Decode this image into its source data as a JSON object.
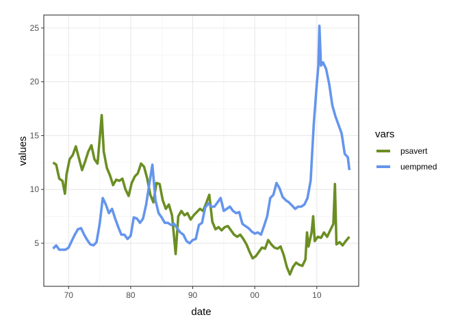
{
  "chart_data": {
    "type": "line",
    "xlabel": "date",
    "ylabel": "values",
    "x_tick_labels": [
      "70",
      "80",
      "90",
      "00",
      "10"
    ],
    "x_ticks": [
      "1970-01-01",
      "1980-01-01",
      "1990-01-01",
      "2000-01-01",
      "2010-01-01"
    ],
    "y_ticks": [
      5,
      10,
      15,
      20,
      25
    ],
    "xlim": [
      "1966-01-01",
      "2016-10-01"
    ],
    "ylim": [
      1.0,
      26.2
    ],
    "grid": true,
    "legend": {
      "title": "vars",
      "position": "right"
    },
    "series": [
      {
        "name": "psavert",
        "color": "#6b8e23",
        "points": [
          [
            "1967-07-01",
            12.5
          ],
          [
            "1968-01-01",
            12.3
          ],
          [
            "1968-07-01",
            11.0
          ],
          [
            "1969-01-01",
            10.8
          ],
          [
            "1969-06-01",
            9.6
          ],
          [
            "1969-09-01",
            11.4
          ],
          [
            "1970-03-01",
            12.8
          ],
          [
            "1970-09-01",
            13.2
          ],
          [
            "1971-03-01",
            14.0
          ],
          [
            "1971-09-01",
            12.9
          ],
          [
            "1972-03-01",
            11.8
          ],
          [
            "1972-09-01",
            12.6
          ],
          [
            "1973-03-01",
            13.5
          ],
          [
            "1973-09-01",
            14.1
          ],
          [
            "1974-03-01",
            12.8
          ],
          [
            "1974-09-01",
            12.4
          ],
          [
            "1975-05-01",
            16.9
          ],
          [
            "1975-09-01",
            13.5
          ],
          [
            "1976-03-01",
            12.0
          ],
          [
            "1976-09-01",
            11.3
          ],
          [
            "1977-03-01",
            10.4
          ],
          [
            "1977-09-01",
            10.9
          ],
          [
            "1978-03-01",
            10.8
          ],
          [
            "1978-09-01",
            11.0
          ],
          [
            "1979-03-01",
            10.0
          ],
          [
            "1979-09-01",
            9.4
          ],
          [
            "1980-03-01",
            10.6
          ],
          [
            "1980-09-01",
            11.2
          ],
          [
            "1981-03-01",
            11.5
          ],
          [
            "1981-09-01",
            12.4
          ],
          [
            "1982-03-01",
            12.1
          ],
          [
            "1982-09-01",
            11.0
          ],
          [
            "1983-03-01",
            9.5
          ],
          [
            "1983-09-01",
            8.8
          ],
          [
            "1984-03-01",
            10.6
          ],
          [
            "1984-09-01",
            10.5
          ],
          [
            "1985-03-01",
            9.0
          ],
          [
            "1985-09-01",
            8.2
          ],
          [
            "1986-03-01",
            8.6
          ],
          [
            "1986-09-01",
            7.6
          ],
          [
            "1987-04-01",
            4.0
          ],
          [
            "1987-09-01",
            7.5
          ],
          [
            "1988-03-01",
            8.0
          ],
          [
            "1988-09-01",
            7.6
          ],
          [
            "1989-03-01",
            7.8
          ],
          [
            "1989-09-01",
            7.2
          ],
          [
            "1990-03-01",
            7.6
          ],
          [
            "1990-09-01",
            7.9
          ],
          [
            "1991-03-01",
            8.2
          ],
          [
            "1991-09-01",
            8.0
          ],
          [
            "1992-03-01",
            8.7
          ],
          [
            "1992-09-01",
            9.5
          ],
          [
            "1993-03-01",
            7.0
          ],
          [
            "1993-09-01",
            6.3
          ],
          [
            "1994-03-01",
            6.5
          ],
          [
            "1994-09-01",
            6.2
          ],
          [
            "1995-03-01",
            6.5
          ],
          [
            "1995-09-01",
            6.6
          ],
          [
            "1996-03-01",
            6.2
          ],
          [
            "1996-09-01",
            5.8
          ],
          [
            "1997-03-01",
            5.6
          ],
          [
            "1997-09-01",
            5.8
          ],
          [
            "1998-03-01",
            5.4
          ],
          [
            "1998-09-01",
            4.9
          ],
          [
            "1999-03-01",
            4.2
          ],
          [
            "1999-09-01",
            3.6
          ],
          [
            "2000-03-01",
            3.8
          ],
          [
            "2000-09-01",
            4.2
          ],
          [
            "2001-03-01",
            4.6
          ],
          [
            "2001-09-01",
            4.5
          ],
          [
            "2002-03-01",
            5.3
          ],
          [
            "2002-09-01",
            4.9
          ],
          [
            "2003-03-01",
            4.6
          ],
          [
            "2003-09-01",
            4.5
          ],
          [
            "2004-03-01",
            4.7
          ],
          [
            "2004-09-01",
            3.9
          ],
          [
            "2005-03-01",
            2.8
          ],
          [
            "2005-09-01",
            2.1
          ],
          [
            "2006-03-01",
            2.8
          ],
          [
            "2006-09-01",
            3.2
          ],
          [
            "2007-03-01",
            3.0
          ],
          [
            "2007-09-01",
            2.9
          ],
          [
            "2008-03-01",
            3.5
          ],
          [
            "2008-06-01",
            6.0
          ],
          [
            "2008-09-01",
            4.7
          ],
          [
            "2009-03-01",
            6.0
          ],
          [
            "2009-06-01",
            7.5
          ],
          [
            "2009-09-01",
            5.2
          ],
          [
            "2010-03-01",
            5.6
          ],
          [
            "2010-09-01",
            5.5
          ],
          [
            "2011-03-01",
            6.0
          ],
          [
            "2011-09-01",
            5.6
          ],
          [
            "2012-03-01",
            6.2
          ],
          [
            "2012-09-01",
            6.8
          ],
          [
            "2012-12-01",
            10.5
          ],
          [
            "2013-03-01",
            4.9
          ],
          [
            "2013-09-01",
            5.1
          ],
          [
            "2014-03-01",
            4.8
          ],
          [
            "2014-09-01",
            5.2
          ],
          [
            "2015-04-01",
            5.6
          ]
        ]
      },
      {
        "name": "uempmed",
        "color": "#6495ed",
        "points": [
          [
            "1967-07-01",
            4.5
          ],
          [
            "1968-01-01",
            4.8
          ],
          [
            "1968-07-01",
            4.4
          ],
          [
            "1969-01-01",
            4.4
          ],
          [
            "1969-07-01",
            4.4
          ],
          [
            "1970-01-01",
            4.6
          ],
          [
            "1970-07-01",
            5.2
          ],
          [
            "1971-01-01",
            5.8
          ],
          [
            "1971-07-01",
            6.3
          ],
          [
            "1972-01-01",
            6.4
          ],
          [
            "1972-07-01",
            5.8
          ],
          [
            "1973-01-01",
            5.3
          ],
          [
            "1973-07-01",
            4.9
          ],
          [
            "1974-01-01",
            4.8
          ],
          [
            "1974-07-01",
            5.1
          ],
          [
            "1975-01-01",
            6.8
          ],
          [
            "1975-07-01",
            9.2
          ],
          [
            "1976-01-01",
            8.6
          ],
          [
            "1976-07-01",
            7.8
          ],
          [
            "1977-01-01",
            8.2
          ],
          [
            "1977-07-01",
            7.3
          ],
          [
            "1978-01-01",
            6.5
          ],
          [
            "1978-07-01",
            5.8
          ],
          [
            "1979-01-01",
            5.8
          ],
          [
            "1979-07-01",
            5.4
          ],
          [
            "1980-01-01",
            5.7
          ],
          [
            "1980-07-01",
            7.4
          ],
          [
            "1981-01-01",
            7.3
          ],
          [
            "1981-07-01",
            6.9
          ],
          [
            "1982-01-01",
            7.3
          ],
          [
            "1982-07-01",
            8.6
          ],
          [
            "1983-01-01",
            10.5
          ],
          [
            "1983-07-01",
            12.3
          ],
          [
            "1984-01-01",
            9.0
          ],
          [
            "1984-07-01",
            7.8
          ],
          [
            "1985-01-01",
            7.4
          ],
          [
            "1985-07-01",
            6.9
          ],
          [
            "1986-01-01",
            6.9
          ],
          [
            "1986-07-01",
            6.7
          ],
          [
            "1987-01-01",
            6.8
          ],
          [
            "1987-07-01",
            6.4
          ],
          [
            "1988-01-01",
            6.0
          ],
          [
            "1988-07-01",
            5.8
          ],
          [
            "1989-01-01",
            5.2
          ],
          [
            "1989-07-01",
            5.0
          ],
          [
            "1990-01-01",
            5.3
          ],
          [
            "1990-07-01",
            5.4
          ],
          [
            "1991-01-01",
            6.7
          ],
          [
            "1991-07-01",
            6.9
          ],
          [
            "1992-01-01",
            8.3
          ],
          [
            "1992-07-01",
            8.7
          ],
          [
            "1993-01-01",
            8.4
          ],
          [
            "1993-07-01",
            8.4
          ],
          [
            "1994-01-01",
            8.8
          ],
          [
            "1994-07-01",
            9.2
          ],
          [
            "1995-01-01",
            8.0
          ],
          [
            "1995-07-01",
            8.2
          ],
          [
            "1996-01-01",
            8.4
          ],
          [
            "1996-07-01",
            8.0
          ],
          [
            "1997-01-01",
            7.8
          ],
          [
            "1997-07-01",
            7.9
          ],
          [
            "1998-01-01",
            6.8
          ],
          [
            "1998-07-01",
            6.6
          ],
          [
            "1999-01-01",
            6.4
          ],
          [
            "1999-07-01",
            6.1
          ],
          [
            "2000-01-01",
            5.9
          ],
          [
            "2000-07-01",
            6.0
          ],
          [
            "2001-01-01",
            5.8
          ],
          [
            "2001-07-01",
            6.6
          ],
          [
            "2002-01-01",
            7.5
          ],
          [
            "2002-07-01",
            9.2
          ],
          [
            "2003-01-01",
            9.5
          ],
          [
            "2003-07-01",
            10.6
          ],
          [
            "2004-01-01",
            10.1
          ],
          [
            "2004-07-01",
            9.3
          ],
          [
            "2005-01-01",
            9.0
          ],
          [
            "2005-07-01",
            8.8
          ],
          [
            "2006-01-01",
            8.5
          ],
          [
            "2006-07-01",
            8.2
          ],
          [
            "2007-01-01",
            8.4
          ],
          [
            "2007-07-01",
            8.4
          ],
          [
            "2008-01-01",
            8.6
          ],
          [
            "2008-07-01",
            9.2
          ],
          [
            "2009-01-01",
            10.8
          ],
          [
            "2009-07-01",
            16.0
          ],
          [
            "2010-01-01",
            19.8
          ],
          [
            "2010-04-01",
            21.5
          ],
          [
            "2010-06-01",
            25.2
          ],
          [
            "2010-09-01",
            21.5
          ],
          [
            "2011-01-01",
            21.8
          ],
          [
            "2011-07-01",
            21.2
          ],
          [
            "2012-01-01",
            19.8
          ],
          [
            "2012-07-01",
            17.8
          ],
          [
            "2013-01-01",
            16.8
          ],
          [
            "2013-07-01",
            16.0
          ],
          [
            "2014-01-01",
            15.2
          ],
          [
            "2014-07-01",
            13.3
          ],
          [
            "2015-01-01",
            13.0
          ],
          [
            "2015-04-01",
            11.8
          ]
        ]
      }
    ]
  }
}
